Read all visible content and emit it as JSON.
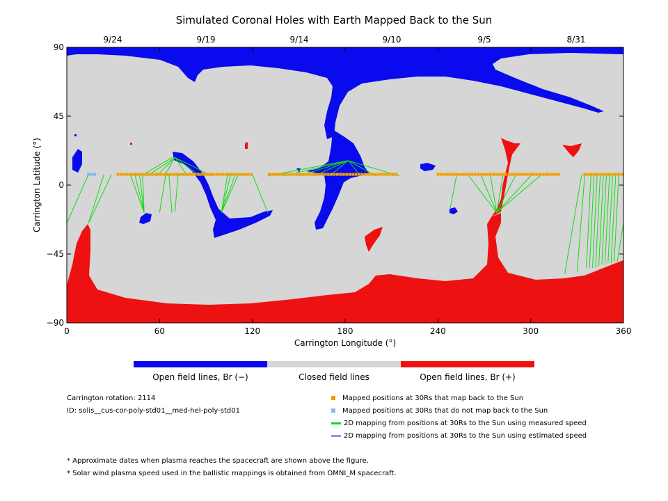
{
  "title": "Simulated Coronal Holes with Earth Mapped Back to the Sun",
  "top_dates": [
    "9/24",
    "9/19",
    "9/14",
    "9/10",
    "9/5",
    "8/31"
  ],
  "colors": {
    "open_negative": "#0a0aee",
    "closed": "#d6d6d6",
    "open_positive": "#ee1111",
    "mapped_back": "#f0a000",
    "not_mapped": "#80b8f0",
    "measured_speed": "#11dd11",
    "estimated_speed": "#c080f0"
  },
  "chart_data": {
    "type": "scatter",
    "title": "Simulated Coronal Holes with Earth Mapped Back to the Sun",
    "xlabel": "Carrington Longitude (°)",
    "ylabel": "Carrington Latitude (°)",
    "xlim": [
      0,
      360
    ],
    "ylim": [
      -90,
      90
    ],
    "x_ticks": [
      0,
      60,
      120,
      180,
      240,
      300,
      360
    ],
    "y_ticks": [
      90,
      45,
      0,
      -45,
      -90
    ],
    "top_axis_labels": [
      "9/24",
      "9/19",
      "9/14",
      "9/10",
      "9/5",
      "8/31"
    ],
    "series": [
      {
        "name": "Mapped positions at 30Rs that map back to the Sun",
        "y": 7,
        "x": [
          33,
          35,
          37,
          39,
          41,
          43,
          45,
          47,
          49,
          51,
          53,
          55,
          57,
          59,
          61,
          63,
          65,
          67,
          69,
          71,
          73,
          75,
          77,
          79,
          81,
          83,
          85,
          87,
          89,
          91,
          93,
          95,
          97,
          99,
          101,
          103,
          105,
          107,
          109,
          111,
          113,
          115,
          117,
          119,
          131,
          133,
          135,
          137,
          139,
          141,
          143,
          145,
          147,
          149,
          151,
          153,
          155,
          157,
          159,
          161,
          163,
          165,
          167,
          169,
          171,
          173,
          175,
          177,
          179,
          181,
          183,
          185,
          187,
          189,
          191,
          193,
          195,
          197,
          199,
          201,
          203,
          205,
          207,
          209,
          211,
          213,
          240,
          242,
          244,
          246,
          248,
          250,
          252,
          254,
          256,
          258,
          260,
          262,
          264,
          266,
          268,
          270,
          272,
          274,
          276,
          278,
          280,
          282,
          284,
          286,
          288,
          290,
          292,
          294,
          296,
          298,
          300,
          302,
          304,
          306,
          308,
          310,
          312,
          314,
          316,
          318,
          335,
          337,
          339,
          341,
          343,
          345,
          347,
          349,
          351,
          353,
          355,
          357,
          359
        ]
      },
      {
        "name": "Mapped positions at 30Rs that do not map back to the Sun",
        "y": 7,
        "x": [
          14,
          16,
          18
        ]
      },
      {
        "name": "2D mapping from positions at 30Rs to the Sun using measured speed",
        "segments": [
          [
            [
              0,
              -25
            ],
            [
              14,
              7
            ]
          ],
          [
            [
              14,
              -25
            ],
            [
              24,
              7
            ]
          ],
          [
            [
              14,
              -25
            ],
            [
              29,
              7
            ]
          ],
          [
            [
              50,
              -18
            ],
            [
              41,
              7
            ]
          ],
          [
            [
              50,
              -18
            ],
            [
              44,
              7
            ]
          ],
          [
            [
              50,
              -18
            ],
            [
              47,
              7
            ]
          ],
          [
            [
              50,
              -18
            ],
            [
              49,
              7
            ]
          ],
          [
            [
              60,
              -18
            ],
            [
              64,
              7
            ]
          ],
          [
            [
              68,
              -18
            ],
            [
              66,
              7
            ]
          ],
          [
            [
              70,
              -17
            ],
            [
              72,
              7
            ]
          ],
          [
            [
              48,
              6
            ],
            [
              68,
              18
            ]
          ],
          [
            [
              52,
              6
            ],
            [
              70,
              18
            ]
          ],
          [
            [
              58,
              6
            ],
            [
              70,
              18
            ]
          ],
          [
            [
              63,
              6
            ],
            [
              70,
              18
            ]
          ],
          [
            [
              78,
              6
            ],
            [
              70,
              18
            ]
          ],
          [
            [
              86,
              6
            ],
            [
              70,
              18
            ]
          ],
          [
            [
              94,
              6
            ],
            [
              70,
              18
            ]
          ],
          [
            [
              100,
              -18
            ],
            [
              104,
              7
            ]
          ],
          [
            [
              100,
              -18
            ],
            [
              106,
              7
            ]
          ],
          [
            [
              100,
              -18
            ],
            [
              109,
              7
            ]
          ],
          [
            [
              100,
              -18
            ],
            [
              111,
              7
            ]
          ],
          [
            [
              130,
              -18
            ],
            [
              120,
              7
            ]
          ],
          [
            [
              130,
              6
            ],
            [
              182,
              16
            ]
          ],
          [
            [
              140,
              6
            ],
            [
              182,
              16
            ]
          ],
          [
            [
              150,
              6
            ],
            [
              182,
              16
            ]
          ],
          [
            [
              160,
              6
            ],
            [
              182,
              16
            ]
          ],
          [
            [
              170,
              6
            ],
            [
              182,
              16
            ]
          ],
          [
            [
              190,
              6
            ],
            [
              182,
              16
            ]
          ],
          [
            [
              200,
              6
            ],
            [
              182,
              16
            ]
          ],
          [
            [
              215,
              6
            ],
            [
              182,
              16
            ]
          ],
          [
            [
              260,
              6
            ],
            [
              278,
              -18
            ]
          ],
          [
            [
              268,
              6
            ],
            [
              278,
              -18
            ]
          ],
          [
            [
              274,
              6
            ],
            [
              278,
              -18
            ]
          ],
          [
            [
              282,
              6
            ],
            [
              278,
              -18
            ]
          ],
          [
            [
              290,
              6
            ],
            [
              278,
              -18
            ]
          ],
          [
            [
              300,
              6
            ],
            [
              278,
              -18
            ]
          ],
          [
            [
              306,
              6
            ],
            [
              278,
              -18
            ]
          ],
          [
            [
              252,
              6
            ],
            [
              248,
              -15
            ]
          ],
          [
            [
              322,
              -58
            ],
            [
              333,
              7
            ]
          ],
          [
            [
              330,
              -57
            ],
            [
              335,
              7
            ]
          ],
          [
            [
              336,
              -54
            ],
            [
              339,
              7
            ]
          ],
          [
            [
              338,
              -54
            ],
            [
              341,
              7
            ]
          ],
          [
            [
              340,
              -54
            ],
            [
              343,
              7
            ]
          ],
          [
            [
              342,
              -54
            ],
            [
              345,
              7
            ]
          ],
          [
            [
              344,
              -53
            ],
            [
              347,
              7
            ]
          ],
          [
            [
              346,
              -52
            ],
            [
              349,
              7
            ]
          ],
          [
            [
              348,
              -52
            ],
            [
              351,
              7
            ]
          ],
          [
            [
              350,
              -51
            ],
            [
              353,
              7
            ]
          ],
          [
            [
              352,
              -51
            ],
            [
              355,
              7
            ]
          ],
          [
            [
              354,
              -50
            ],
            [
              357,
              7
            ]
          ],
          [
            [
              356,
              -50
            ],
            [
              360,
              -25
            ]
          ]
        ]
      },
      {
        "name": "2D mapping from positions at 30Rs to the Sun using estimated speed",
        "segments": []
      }
    ]
  },
  "colorbar": {
    "labels": [
      "Open field lines, Br (−)",
      "Closed field lines",
      "Open field lines, Br (+)"
    ]
  },
  "info": {
    "rotation": "Carrington rotation: 2114",
    "id": "ID: solis__cus-cor-poly-std01__med-hel-poly-std01"
  },
  "legend": [
    {
      "label": "Mapped positions at 30Rs that map back to the Sun",
      "kind": "square",
      "color": "#f0a000"
    },
    {
      "label": "Mapped positions at 30Rs that do not map back to the Sun",
      "kind": "square",
      "color": "#80b8f0"
    },
    {
      "label": "2D mapping from positions at 30Rs to the Sun using measured speed",
      "kind": "line",
      "color": "#11dd11"
    },
    {
      "label": "2D mapping from positions at 30Rs to the Sun using estimated speed",
      "kind": "line",
      "color": "#c080f0"
    }
  ],
  "footnotes": [
    "* Approximate dates when plasma reaches the spacecraft are shown above the figure.",
    "* Solar wind plasma speed used in the ballistic mappings is obtained from OMNI_M spacecraft."
  ]
}
